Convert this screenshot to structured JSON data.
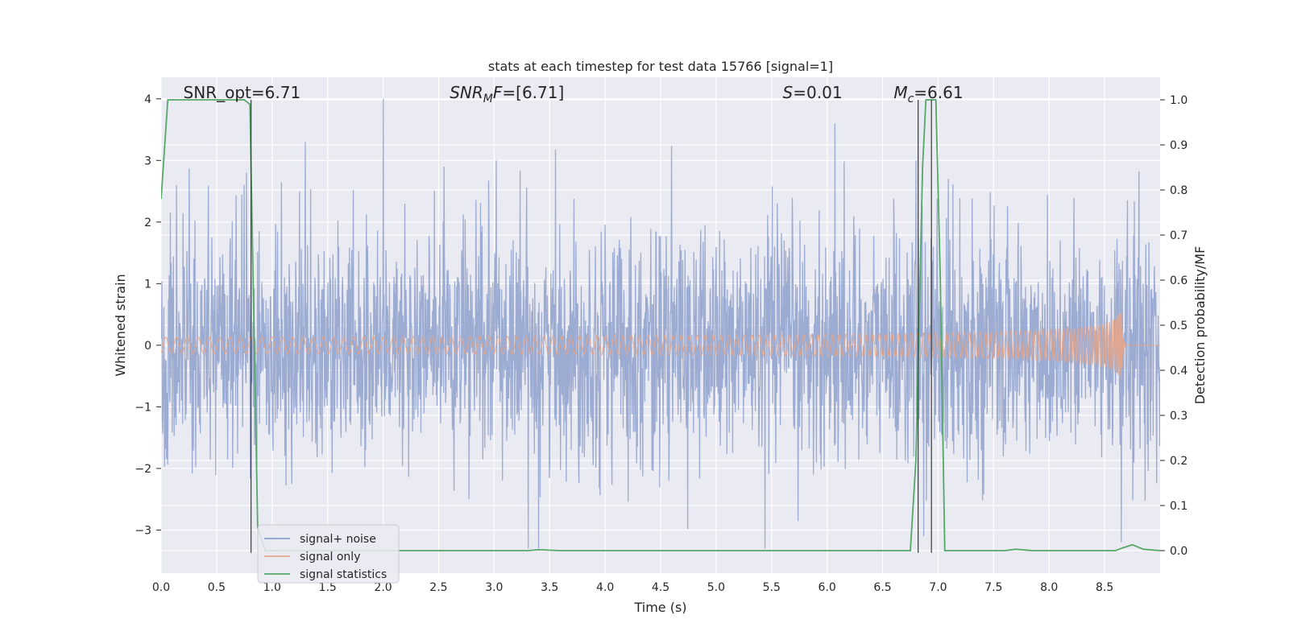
{
  "chart_data": {
    "type": "line",
    "title": "stats at each timestep for test data 15766 [signal=1]",
    "xlabel": "Time (s)",
    "ylabel": "Whitened strain",
    "y2label": "Detection probability/MF",
    "xlim": [
      0,
      9
    ],
    "ylim": [
      -3.7,
      4.35
    ],
    "y2lim": [
      -0.05,
      1.05
    ],
    "x_ticks": [
      0.0,
      0.5,
      1.0,
      1.5,
      2.0,
      2.5,
      3.0,
      3.5,
      4.0,
      4.5,
      5.0,
      5.5,
      6.0,
      6.5,
      7.0,
      7.5,
      8.0,
      8.5
    ],
    "x_tick_labels": [
      "0.0",
      "0.5",
      "1.0",
      "1.5",
      "2.0",
      "2.5",
      "3.0",
      "3.5",
      "4.0",
      "4.5",
      "5.0",
      "5.5",
      "6.0",
      "6.5",
      "7.0",
      "7.5",
      "8.0",
      "8.5"
    ],
    "y_ticks": [
      -3,
      -2,
      -1,
      0,
      1,
      2,
      3,
      4
    ],
    "y_tick_labels": [
      "−3",
      "−2",
      "−1",
      "0",
      "1",
      "2",
      "3",
      "4"
    ],
    "y2_ticks": [
      0.0,
      0.1,
      0.2,
      0.3,
      0.4,
      0.5,
      0.6,
      0.7,
      0.8,
      0.9,
      1.0
    ],
    "y2_tick_labels": [
      "0.0",
      "0.1",
      "0.2",
      "0.3",
      "0.4",
      "0.5",
      "0.6",
      "0.7",
      "0.8",
      "0.9",
      "1.0"
    ],
    "grid": true,
    "legend_position": "lower-left",
    "annotations": [
      {
        "id": "snr-opt",
        "base": "SNR_opt=6.71",
        "sub": "",
        "rest": "",
        "italic": false,
        "x": 0.2
      },
      {
        "id": "snr-mf",
        "base": "SNR",
        "sub": "M",
        "rest": "F=[6.71]",
        "italic": true,
        "x": 2.6
      },
      {
        "id": "s-stat",
        "base": "S",
        "sub": "",
        "rest": "=0.01",
        "italic": true,
        "x": 5.6
      },
      {
        "id": "mc",
        "base": "M",
        "sub": "c",
        "rest": "=6.61",
        "italic": true,
        "x": 6.6
      }
    ],
    "vertical_markers": [
      0.81,
      6.82,
      6.94
    ],
    "series": [
      {
        "name": "signal+ noise",
        "color": "#8da0cb",
        "kind": "noise",
        "std": 0.95,
        "range": [
          -3.3,
          4.0
        ],
        "spikes": [
          [
            0.14,
            2.6
          ],
          [
            0.77,
            2.8
          ],
          [
            1.3,
            3.3
          ],
          [
            2.0,
            4.0
          ],
          [
            2.55,
            2.9
          ],
          [
            3.02,
            3.0
          ],
          [
            6.07,
            3.6
          ],
          [
            6.8,
            3.0
          ],
          [
            3.4,
            -3.3
          ],
          [
            5.44,
            -3.3
          ],
          [
            6.87,
            -3.1
          ],
          [
            8.65,
            -3.2
          ]
        ]
      },
      {
        "name": "signal only",
        "color": "#e5a589",
        "kind": "chirp",
        "merger_time": 8.65,
        "peak_amplitude": 0.6
      },
      {
        "name": "signal statistics",
        "color": "#55a868",
        "kind": "prob",
        "points": [
          [
            0.0,
            0.78
          ],
          [
            0.06,
            1.0
          ],
          [
            0.1,
            1.0
          ],
          [
            0.75,
            1.0
          ],
          [
            0.8,
            0.99
          ],
          [
            0.87,
            0.05
          ],
          [
            0.94,
            0.0
          ],
          [
            3.3,
            0.0
          ],
          [
            3.4,
            0.002
          ],
          [
            3.6,
            0.0
          ],
          [
            6.75,
            0.0
          ],
          [
            6.8,
            0.2
          ],
          [
            6.86,
            0.85
          ],
          [
            6.89,
            1.0
          ],
          [
            6.98,
            1.0
          ],
          [
            7.02,
            0.6
          ],
          [
            7.06,
            0.0
          ],
          [
            7.6,
            0.0
          ],
          [
            7.7,
            0.003
          ],
          [
            7.85,
            0.0
          ],
          [
            8.6,
            0.0
          ],
          [
            8.65,
            0.005
          ],
          [
            8.75,
            0.013
          ],
          [
            8.85,
            0.003
          ],
          [
            9.0,
            0.0
          ]
        ]
      }
    ]
  }
}
